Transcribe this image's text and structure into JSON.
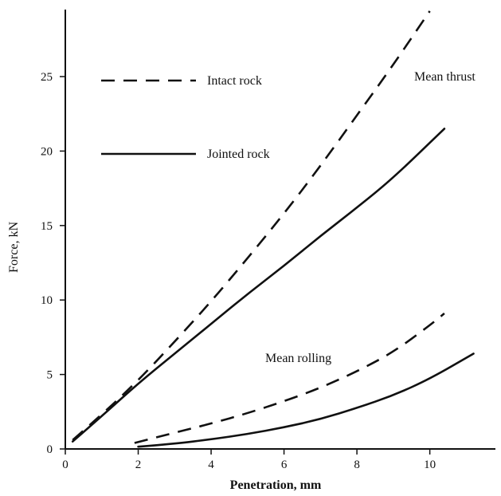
{
  "chart_data": {
    "type": "line",
    "title": "",
    "xlabel": "Penetration, mm",
    "ylabel": "Force, kN",
    "xlim": [
      0,
      11.8
    ],
    "ylim": [
      0,
      29.5
    ],
    "xticks": [
      0,
      2,
      4,
      6,
      8,
      10
    ],
    "yticks": [
      0,
      5,
      10,
      15,
      20,
      25
    ],
    "xtick_labels": [
      "0",
      "2",
      "4",
      "6",
      "8",
      "10"
    ],
    "ytick_labels": [
      "0",
      "5",
      "10",
      "15",
      "20",
      "25"
    ],
    "grid": false,
    "legend": {
      "placement": "top-left",
      "entries": [
        {
          "label": "Intact rock",
          "style": "dashed"
        },
        {
          "label": "Jointed rock",
          "style": "solid"
        }
      ]
    },
    "annotations": [
      {
        "text": "Mean thrust",
        "x": 9.9,
        "y": 25.5
      },
      {
        "text": "Mean rolling",
        "x": 6.4,
        "y": 6.4
      }
    ],
    "series": [
      {
        "rock": "Intact rock",
        "style": "dashed",
        "group": "Mean thrust",
        "x": [
          0.2,
          1,
          2,
          3,
          4,
          5,
          6,
          7,
          8,
          9,
          10
        ],
        "y": [
          0.6,
          2.3,
          4.6,
          7.2,
          9.9,
          12.8,
          15.8,
          19.0,
          22.4,
          25.8,
          29.4
        ]
      },
      {
        "rock": "Jointed rock",
        "style": "solid",
        "group": "Mean thrust",
        "x": [
          0.2,
          1,
          2,
          3,
          4,
          5,
          6,
          7,
          8,
          9,
          10.4
        ],
        "y": [
          0.5,
          2.2,
          4.4,
          6.4,
          8.4,
          10.4,
          12.3,
          14.3,
          16.2,
          18.2,
          21.5
        ]
      },
      {
        "rock": "Intact rock",
        "style": "dashed",
        "group": "Mean rolling",
        "x": [
          1.9,
          3,
          4,
          5,
          6,
          7,
          8,
          9,
          10,
          10.4
        ],
        "y": [
          0.4,
          1.1,
          1.7,
          2.4,
          3.2,
          4.1,
          5.2,
          6.5,
          8.3,
          9.1
        ]
      },
      {
        "rock": "Jointed rock",
        "style": "solid",
        "group": "Mean rolling",
        "x": [
          2.0,
          3,
          4,
          5,
          6,
          7,
          8,
          9,
          10,
          11.2
        ],
        "y": [
          0.15,
          0.35,
          0.65,
          1.0,
          1.45,
          2.0,
          2.75,
          3.6,
          4.7,
          6.4
        ]
      }
    ]
  }
}
